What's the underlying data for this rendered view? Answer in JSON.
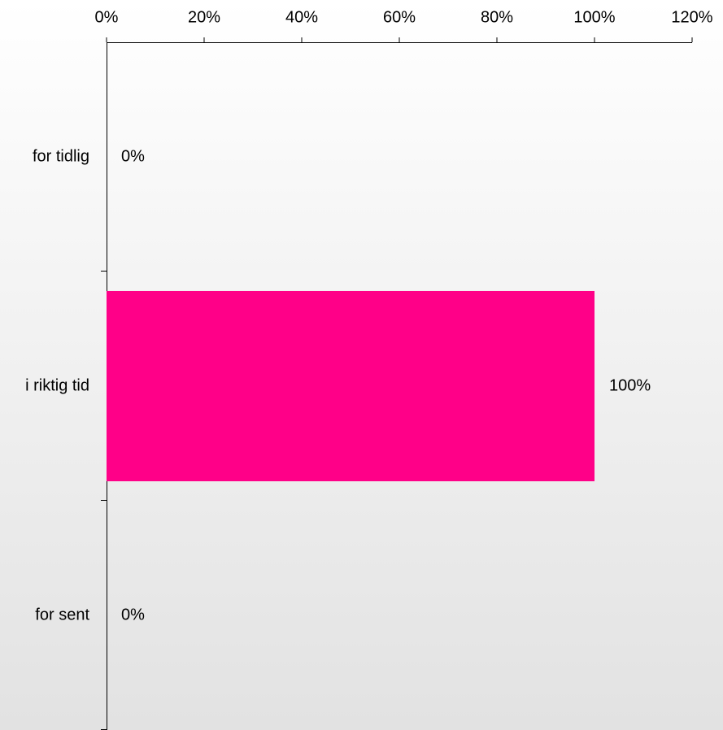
{
  "chart_data": {
    "type": "bar",
    "orientation": "horizontal",
    "categories": [
      "for tidlig",
      "i riktig tid",
      "for sent"
    ],
    "values": [
      0,
      100,
      0
    ],
    "value_labels": [
      "0%",
      "100%",
      "0%"
    ],
    "color": "#ff0088",
    "xlim": [
      0,
      120
    ],
    "xticks": [
      {
        "value": 0,
        "label": "0%"
      },
      {
        "value": 20,
        "label": "20%"
      },
      {
        "value": 40,
        "label": "40%"
      },
      {
        "value": 60,
        "label": "60%"
      },
      {
        "value": 80,
        "label": "80%"
      },
      {
        "value": 100,
        "label": "100%"
      },
      {
        "value": 120,
        "label": "120%"
      }
    ],
    "grid": false
  }
}
